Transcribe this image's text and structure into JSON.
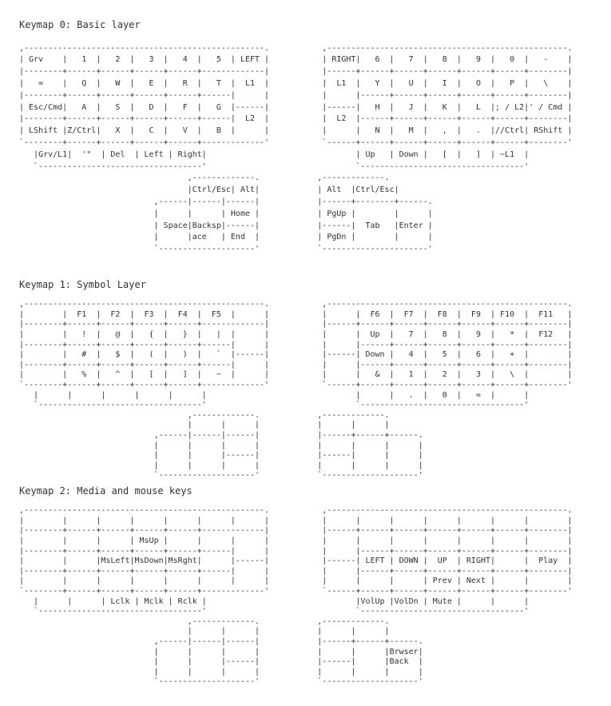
{
  "page": {
    "background_color": "#ffffff",
    "text_color": "#333333"
  },
  "sections": [
    {
      "id": "keymap-0",
      "title": "Keymap 0: Basic layer",
      "art_lines": [
        ",--------------------------------------------------.           ,--------------------------------------------------.",
        "| Grv    |   1  |   2  |   3  |   4  |   5  | LEFT |           | RIGHT|   6  |   7  |   8  |   9  |   0  |   -    |",
        "|--------+------+------+------+------+-------------|           |------+------+------+------+------+------+--------|",
        "|   =    |   Q  |   W  |   E  |   R  |   T  |  L1  |           |  L1  |   Y  |   U  |   I  |   O  |   P  |   \\    |",
        "|--------+------+------+------+------+------|      |           |      |------+------+------+------+------+--------|",
        "| Esc/Cmd|   A  |   S  |   D  |   F  |   G  |------|           |------|   H  |   J  |   K  |   L  |; / L2|' / Cmd |",
        "|--------+------+------+------+------+------|  L2  |           |  L2  |------+------+------+------+------+--------|",
        "| LShift |Z/Ctrl|   X  |   C  |   V  |   B  |      |           |      |   N  |   M  |   ,  |   .  |//Ctrl| RShift |",
        "`--------+------+------+------+------+-------------'           `------+------+------+------+------+------+--------'",
        "   |Grv/L1|  '\"  | Del  | Left | Right|                               | Up   | Down |   [  |   ]  | ~L1  |",
        "   `----------------------------------'                               `----------------------------------'",
        "                                   ,-------------.            ,-------------.",
        "                                   |Ctrl/Esc| Alt|            | Alt  |Ctrl/Esc|",
        "                            ,------|------|------|            |------+--------+------.",
        "                            |      |      | Home |            | PgUp |        |      |",
        "                            | Space|Backsp|------|            |------|  Tab   |Enter |",
        "                            |      |ace   | End  |            | PgDn |        |      |",
        "                            `--------------------'            `----------------------'"
      ]
    },
    {
      "id": "keymap-1",
      "title": "Keymap 1: Symbol Layer",
      "art_lines": [
        ",--------------------------------------------------.           ,--------------------------------------------------.",
        "|        |  F1  |  F2  |  F3  |  F4  |  F5  |      |           |      |  F6  |  F7  |  F8  |  F9  | F10  |  F11   |",
        "|--------+------+------+------+------+-------------|           |------+------+------+------+------+------+--------|",
        "|        |   !  |   @  |   {  |   }  |   |  |      |           |      |  Up  |   7  |   8  |   9  |   *  |  F12   |",
        "|--------+------+------+------+------+------|      |           |      |------+------+------+------+------+--------|",
        "|        |   #  |   $  |   (  |   )  |   `  |------|           |------| Down |   4  |   5  |   6  |   +  |        |",
        "|--------+------+------+------+------+------|      |           |      |------+------+------+------+------+--------|",
        "|        |   %  |   ^  |   [  |   ]  |   ~  |      |           |      |   &  |   1  |   2  |   3  |   \\  |        |",
        "`--------+------+------+------+------+-------------'           `------+------+------+------+------+------+--------'",
        "   |      |      |      |      |      |                               |      |   .  |   0  |   =  |      |",
        "   `----------------------------------'                               `----------------------------------'",
        "                                   ,-------------.            ,-------------.",
        "                                   |      |      |            |      |      |",
        "                            ,------|------|------|            |------+------+------.",
        "                            |      |      |      |            |      |      |      |",
        "                            |      |      |------|            |------|      |      |",
        "                            |      |      |      |            |      |      |      |",
        "                            `--------------------'            `--------------------'"
      ]
    },
    {
      "id": "keymap-2",
      "title": "Keymap 2: Media and mouse keys",
      "art_lines": [
        ",--------------------------------------------------.           ,--------------------------------------------------.",
        "|        |      |      |      |      |      |      |           |      |      |      |      |      |      |        |",
        "|--------+------+------+------+------+-------------|           |------+------+------+------+------+------+--------|",
        "|        |      |      | MsUp |      |      |      |           |      |      |      |      |      |      |        |",
        "|--------+------+------+------+------+------|      |           |      |------+------+------+------+------+--------|",
        "|        |      |MsLeft|MsDown|MsRght|      |------|           |------| LEFT | DOWN |  UP  | RIGHT|      |  Play  |",
        "|--------+------+------+------+------+------|      |           |      |------+------+------+------+------+--------|",
        "|        |      |      |      |      |      |      |           |      |      |      | Prev | Next |      |        |",
        "`--------+------+------+------+------+-------------'           `------+------+------+------+------+------+--------'",
        "   |      |      | Lclk | Mclk | Rclk |                               |VolUp |VolDn | Mute |      |      |",
        "   `----------------------------------'                               `----------------------------------'",
        "                                   ,-------------.            ,-------------.",
        "                                   |      |      |            |      |      |",
        "                            ,------|------|------|            |------+------+------.",
        "                            |      |      |      |            |      |      |Brwser|",
        "                            |      |      |------|            |------|      |Back  |",
        "                            |      |      |      |            |      |      |      |",
        "                            `--------------------'            `--------------------'"
      ]
    }
  ]
}
